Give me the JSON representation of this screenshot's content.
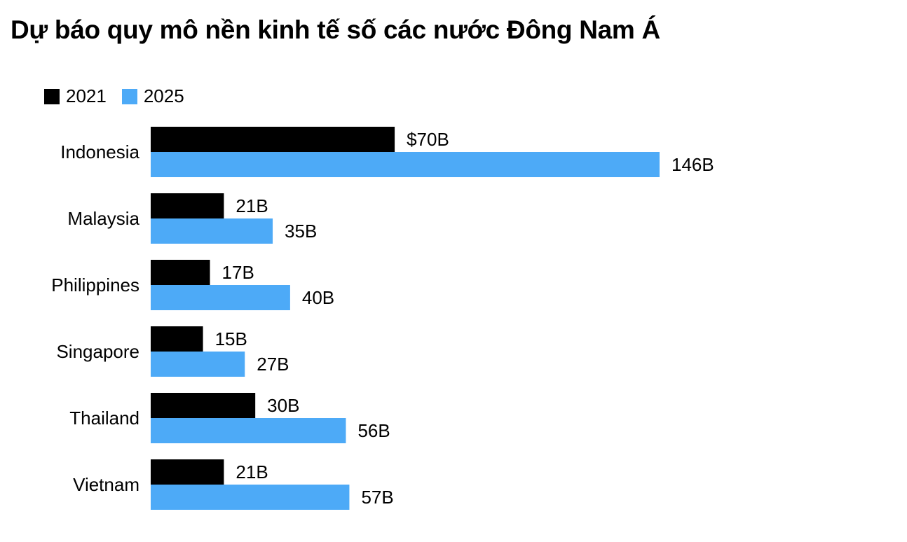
{
  "title": "Dự báo quy mô nền kinh tế số các nước Đông Nam Á",
  "legend": [
    {
      "label": "2021",
      "color": "#000000"
    },
    {
      "label": "2025",
      "color": "#4daaf7"
    }
  ],
  "chart_data": {
    "type": "bar",
    "orientation": "horizontal",
    "title": "Dự báo quy mô nền kinh tế số các nước Đông Nam Á",
    "categories": [
      "Indonesia",
      "Malaysia",
      "Philippines",
      "Singapore",
      "Thailand",
      "Vietnam"
    ],
    "series": [
      {
        "name": "2021",
        "color": "#000000",
        "values": [
          70,
          21,
          17,
          15,
          30,
          21
        ],
        "labels": [
          "$70B",
          "21B",
          "17B",
          "15B",
          "30B",
          "21B"
        ]
      },
      {
        "name": "2025",
        "color": "#4daaf7",
        "values": [
          146,
          35,
          40,
          27,
          56,
          57
        ],
        "labels": [
          "146B",
          "35B",
          "40B",
          "27B",
          "56B",
          "57B"
        ]
      }
    ],
    "xlim": [
      0,
      146
    ],
    "grid": false,
    "legend_position": "top-left"
  }
}
